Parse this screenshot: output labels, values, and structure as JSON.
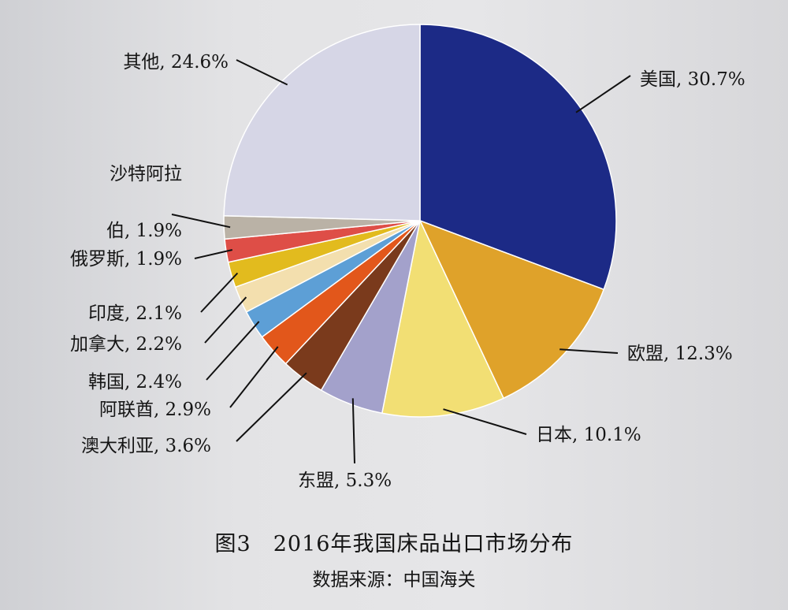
{
  "chart_data": {
    "type": "pie",
    "title": "图3　2016年我国床品出口市场分布",
    "source": "数据来源：中国海关",
    "slices": [
      {
        "label": "美国, 30.7%",
        "name": "美国",
        "value": 30.7,
        "color": "#1c2a86"
      },
      {
        "label": "欧盟, 12.3%",
        "name": "欧盟",
        "value": 12.3,
        "color": "#dfa22a"
      },
      {
        "label": "日本, 10.1%",
        "name": "日本",
        "value": 10.1,
        "color": "#f2df74"
      },
      {
        "label": "东盟, 5.3%",
        "name": "东盟",
        "value": 5.3,
        "color": "#a3a1cb"
      },
      {
        "label": "澳大利亚, 3.6%",
        "name": "澳大利亚",
        "value": 3.6,
        "color": "#7a3a1c"
      },
      {
        "label": "阿联酋, 2.9%",
        "name": "阿联酋",
        "value": 2.9,
        "color": "#e2571b"
      },
      {
        "label": "韩国, 2.4%",
        "name": "韩国",
        "value": 2.4,
        "color": "#5d9fd6"
      },
      {
        "label": "加拿大, 2.2%",
        "name": "加拿大",
        "value": 2.2,
        "color": "#f3dfae"
      },
      {
        "label": "印度, 2.1%",
        "name": "印度",
        "value": 2.1,
        "color": "#e2bb1e"
      },
      {
        "label": "俄罗斯, 1.9%",
        "name": "俄罗斯",
        "value": 1.9,
        "color": "#de4e47"
      },
      {
        "label": "沙特阿拉伯, 1.9%",
        "name": "沙特阿拉伯",
        "value": 1.9,
        "color": "#bab2a6"
      },
      {
        "label": "其他, 24.6%",
        "name": "其他",
        "value": 24.6,
        "color": "#d6d6e6"
      }
    ]
  }
}
